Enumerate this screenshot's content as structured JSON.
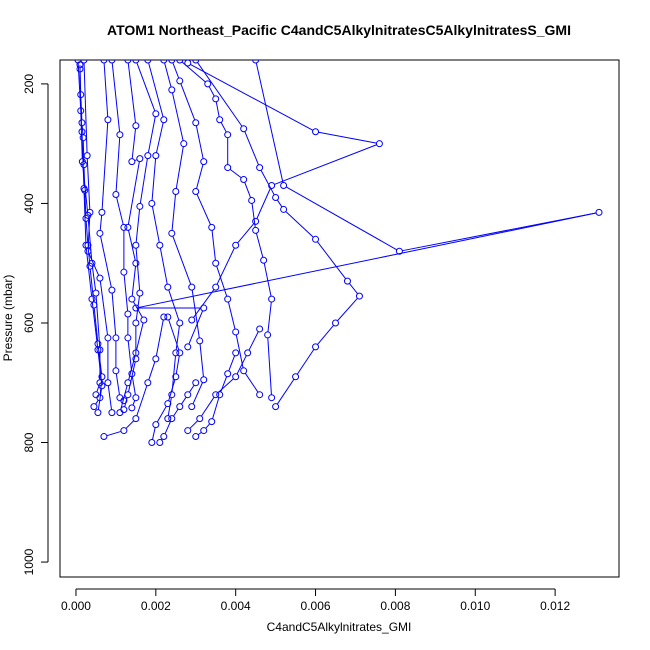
{
  "chart_data": {
    "type": "line",
    "title": "ATOM1 Northeast_Pacific C4andC5AlkylnitratesC5AlkylnitratesS_GMI",
    "xlabel": "C4andC5Alkylnitrates_GMI",
    "ylabel": "Pressure (mbar)",
    "xlim": [
      -0.0004,
      0.0136
    ],
    "ylim": [
      1025,
      160
    ],
    "y_reversed": true,
    "grid": false,
    "x_ticks": [
      0.0,
      0.002,
      0.004,
      0.006,
      0.008,
      0.01,
      0.012
    ],
    "x_tick_labels": [
      "0.000",
      "0.002",
      "0.004",
      "0.006",
      "0.008",
      "0.010",
      "0.012"
    ],
    "y_ticks": [
      200,
      400,
      600,
      800,
      1000
    ],
    "y_tick_labels": [
      "200",
      "400",
      "600",
      "800",
      "1000"
    ],
    "series_color": "#0000ff",
    "series": [
      {
        "points": [
          [
            0.0001,
            175
          ],
          [
            0.00012,
            218
          ],
          [
            0.00015,
            265
          ],
          [
            0.00018,
            290
          ],
          [
            0.0002,
            335
          ],
          [
            0.00022,
            378
          ],
          [
            0.00025,
            425
          ],
          [
            0.0003,
            470
          ],
          [
            0.00035,
            505
          ],
          [
            0.00045,
            570
          ],
          [
            0.00055,
            635
          ],
          [
            0.00065,
            690
          ],
          [
            0.0006,
            725
          ],
          [
            0.00045,
            740
          ]
        ]
      },
      {
        "points": [
          [
            0.0001,
            168
          ],
          [
            0.00012,
            245
          ],
          [
            0.00016,
            330
          ],
          [
            0.0003,
            420
          ],
          [
            0.0004,
            500
          ],
          [
            0.0005,
            550
          ],
          [
            0.0006,
            645
          ],
          [
            0.0006,
            700
          ],
          [
            0.0005,
            720
          ]
        ]
      },
      {
        "points": [
          [
            5e-05,
            160
          ],
          [
            0.00015,
            280
          ],
          [
            0.0002,
            375
          ],
          [
            0.00025,
            470
          ],
          [
            0.0004,
            560
          ],
          [
            0.00055,
            645
          ],
          [
            0.00065,
            705
          ],
          [
            0.00055,
            750
          ]
        ]
      },
      {
        "points": [
          [
            0.0002,
            160
          ],
          [
            0.00028,
            320
          ],
          [
            0.00035,
            415
          ],
          [
            0.0003,
            480
          ],
          [
            0.0006,
            525
          ],
          [
            0.0008,
            625
          ],
          [
            0.0008,
            700
          ],
          [
            0.0009,
            750
          ]
        ]
      },
      {
        "points": [
          [
            0.0007,
            160
          ],
          [
            0.0008,
            260
          ],
          [
            0.00065,
            415
          ],
          [
            0.0006,
            450
          ],
          [
            0.0009,
            545
          ],
          [
            0.001,
            625
          ],
          [
            0.001,
            680
          ],
          [
            0.0011,
            725
          ],
          [
            0.0012,
            730
          ]
        ]
      },
      {
        "points": [
          [
            0.0009,
            160
          ],
          [
            0.0011,
            285
          ],
          [
            0.001,
            385
          ],
          [
            0.0012,
            440
          ],
          [
            0.0012,
            515
          ],
          [
            0.0013,
            585
          ],
          [
            0.0013,
            625
          ],
          [
            0.0014,
            685
          ],
          [
            0.0015,
            725
          ],
          [
            0.0014,
            742
          ]
        ]
      },
      {
        "points": [
          [
            0.0013,
            160
          ],
          [
            0.0015,
            270
          ],
          [
            0.0014,
            330
          ],
          [
            0.0016,
            325
          ],
          [
            0.0013,
            440
          ],
          [
            0.0015,
            500
          ],
          [
            0.0014,
            560
          ],
          [
            0.0017,
            595
          ],
          [
            0.0015,
            650
          ],
          [
            0.0013,
            700
          ],
          [
            0.0011,
            750
          ]
        ]
      },
      {
        "points": [
          [
            0.0015,
            160
          ],
          [
            0.002,
            250
          ],
          [
            0.0018,
            320
          ],
          [
            0.0016,
            405
          ],
          [
            0.0015,
            470
          ],
          [
            0.0016,
            550
          ],
          [
            0.0015,
            600
          ],
          [
            0.0015,
            660
          ],
          [
            0.0013,
            720
          ],
          [
            0.0012,
            745
          ]
        ]
      },
      {
        "points": [
          [
            0.0018,
            160
          ],
          [
            0.0022,
            260
          ],
          [
            0.002,
            320
          ],
          [
            0.0019,
            400
          ],
          [
            0.0021,
            470
          ],
          [
            0.0023,
            540
          ],
          [
            0.0026,
            600
          ],
          [
            0.0025,
            650
          ],
          [
            0.0024,
            720
          ],
          [
            0.0023,
            760
          ]
        ]
      },
      {
        "points": [
          [
            0.0022,
            160
          ],
          [
            0.0024,
            210
          ],
          [
            0.0027,
            300
          ],
          [
            0.0025,
            380
          ],
          [
            0.0024,
            450
          ],
          [
            0.0029,
            540
          ],
          [
            0.0031,
            630
          ],
          [
            0.0032,
            695
          ],
          [
            0.0029,
            740
          ]
        ]
      },
      {
        "points": [
          [
            0.0024,
            160
          ],
          [
            0.0026,
            195
          ],
          [
            0.003,
            265
          ],
          [
            0.0032,
            330
          ],
          [
            0.003,
            380
          ],
          [
            0.0034,
            440
          ],
          [
            0.0035,
            500
          ],
          [
            0.0038,
            560
          ],
          [
            0.004,
            615
          ],
          [
            0.0042,
            680
          ],
          [
            0.0046,
            720
          ]
        ]
      },
      {
        "points": [
          [
            0.0026,
            160
          ],
          [
            0.0033,
            200
          ],
          [
            0.0035,
            225
          ],
          [
            0.0036,
            260
          ],
          [
            0.0038,
            285
          ],
          [
            0.0038,
            340
          ],
          [
            0.0042,
            360
          ],
          [
            0.0044,
            395
          ],
          [
            0.0045,
            445
          ],
          [
            0.0047,
            495
          ],
          [
            0.0049,
            560
          ],
          [
            0.0048,
            620
          ],
          [
            0.0049,
            725
          ]
        ]
      },
      {
        "points": [
          [
            0.003,
            160
          ],
          [
            0.0042,
            275
          ],
          [
            0.0046,
            340
          ],
          [
            0.005,
            390
          ],
          [
            0.0052,
            410
          ],
          [
            0.006,
            460
          ],
          [
            0.0068,
            530
          ],
          [
            0.0071,
            555
          ],
          [
            0.0065,
            600
          ],
          [
            0.006,
            640
          ],
          [
            0.0055,
            690
          ],
          [
            0.005,
            740
          ]
        ]
      },
      {
        "points": [
          [
            0.0028,
            165
          ],
          [
            0.006,
            280
          ],
          [
            0.0076,
            300
          ],
          [
            0.0049,
            370
          ],
          [
            0.0045,
            430
          ],
          [
            0.004,
            470
          ],
          [
            0.0035,
            540
          ],
          [
            0.0029,
            595
          ]
        ]
      },
      {
        "points": [
          [
            0.0045,
            160
          ],
          [
            0.0052,
            370
          ],
          [
            0.0081,
            480
          ],
          [
            0.0131,
            415
          ],
          [
            0.0015,
            575
          ],
          [
            0.0032,
            575
          ],
          [
            0.0028,
            640
          ]
        ]
      },
      {
        "points": [
          [
            0.0023,
            590
          ],
          [
            0.0026,
            650
          ],
          [
            0.0025,
            690
          ],
          [
            0.0023,
            735
          ],
          [
            0.002,
            770
          ],
          [
            0.0019,
            800
          ]
        ]
      },
      {
        "points": [
          [
            0.0022,
            590
          ],
          [
            0.002,
            660
          ],
          [
            0.0018,
            700
          ],
          [
            0.0015,
            760
          ],
          [
            0.0012,
            780
          ],
          [
            0.0007,
            790
          ]
        ]
      },
      {
        "points": [
          [
            0.003,
            700
          ],
          [
            0.0028,
            720
          ],
          [
            0.0026,
            740
          ],
          [
            0.0024,
            760
          ],
          [
            0.0022,
            790
          ],
          [
            0.0021,
            800
          ]
        ]
      },
      {
        "points": [
          [
            0.004,
            650
          ],
          [
            0.0038,
            685
          ],
          [
            0.0036,
            720
          ],
          [
            0.0034,
            765
          ],
          [
            0.0032,
            780
          ],
          [
            0.003,
            790
          ]
        ]
      },
      {
        "points": [
          [
            0.0046,
            610
          ],
          [
            0.0043,
            650
          ],
          [
            0.004,
            690
          ],
          [
            0.0035,
            720
          ],
          [
            0.0031,
            760
          ],
          [
            0.0028,
            780
          ]
        ]
      }
    ]
  }
}
